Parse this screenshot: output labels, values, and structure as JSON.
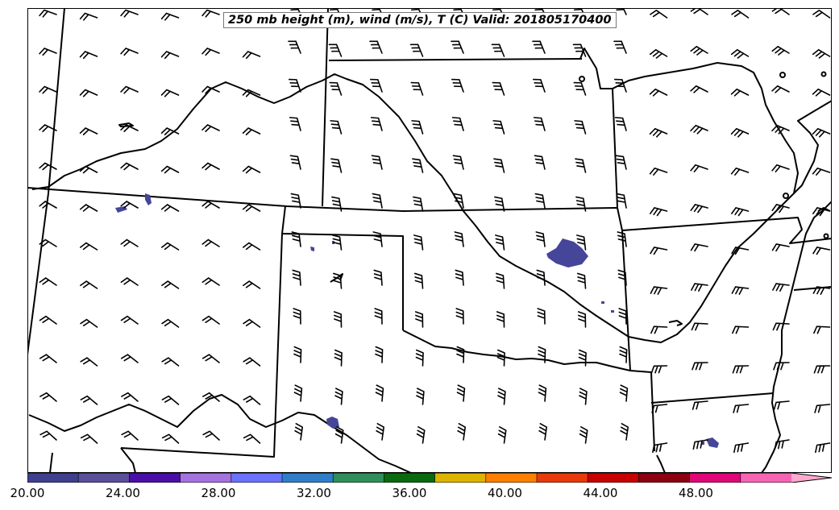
{
  "title": "250 mb height (m), wind (m/s), T (C) Valid: 201805170400",
  "colorbar": {
    "colors": [
      "#3f3f8f",
      "#5a4f9a",
      "#4b0fa8",
      "#a572e0",
      "#6b72ff",
      "#2f7ec8",
      "#2f8f5a",
      "#0a6a10",
      "#ddb400",
      "#ff7f00",
      "#e83a0a",
      "#c80000",
      "#8c0010",
      "#e00878",
      "#f864b4",
      "#ffa8d0"
    ],
    "min": 20,
    "max": 52,
    "tick_labels": [
      "20.00",
      "24.00",
      "28.00",
      "32.00",
      "36.00",
      "40.00",
      "44.00",
      "48.00"
    ],
    "tick_values": [
      20,
      24,
      28,
      32,
      36,
      40,
      44,
      48
    ]
  },
  "map": {
    "background": "#ffffff",
    "line_color": "#000000",
    "fill_color": "#45459a"
  }
}
